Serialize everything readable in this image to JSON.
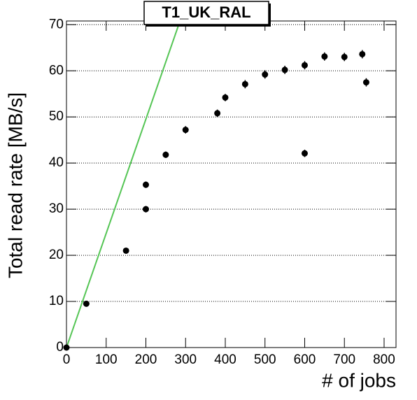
{
  "chart_data": {
    "type": "scatter",
    "title": "T1_UK_RAL",
    "xlabel": "# of jobs",
    "ylabel": "Total read rate [MB/s]",
    "xlim": [
      0,
      830
    ],
    "ylim": [
      0,
      70.8
    ],
    "xticks": [
      0,
      100,
      200,
      300,
      400,
      500,
      600,
      700,
      800
    ],
    "yticks": [
      0,
      10,
      20,
      30,
      40,
      50,
      60,
      70
    ],
    "grid": true,
    "points": {
      "color": "#000000",
      "x": [
        0,
        50,
        150,
        200,
        200,
        250,
        300,
        380,
        400,
        450,
        500,
        550,
        600,
        600,
        650,
        700,
        745,
        755
      ],
      "values": [
        0,
        9.5,
        21,
        30,
        35.3,
        41.8,
        47.2,
        50.8,
        54.2,
        57.1,
        59.2,
        60.2,
        61.2,
        42.1,
        63.1,
        63,
        63.6,
        57.5
      ],
      "errors": [
        0.5,
        0.6,
        0.6,
        0.7,
        0.7,
        0.7,
        0.8,
        0.8,
        0.8,
        0.9,
        0.9,
        0.9,
        0.9,
        0.8,
        0.9,
        0.9,
        0.9,
        0.9
      ]
    },
    "fit_line": {
      "color": "#55c555",
      "x": [
        0,
        286
      ],
      "values": [
        0,
        70.8
      ]
    }
  }
}
